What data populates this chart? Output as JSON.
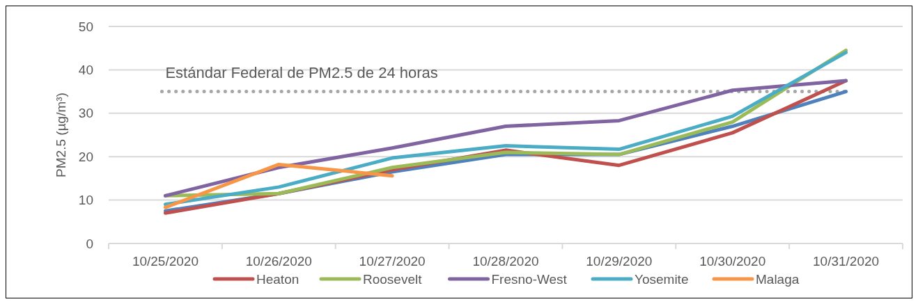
{
  "chart_data": {
    "type": "line",
    "ylabel": "PM2.5 (µg/m³)",
    "categories": [
      "10/25/2020",
      "10/26/2020",
      "10/27/2020",
      "10/28/2020",
      "10/29/2020",
      "10/30/2020",
      "10/31/2020"
    ],
    "series": [
      {
        "color": "#4f81bd",
        "values": [
          7.5,
          11.5,
          16.5,
          20.5,
          20.5,
          27,
          35
        ]
      },
      {
        "name": "Heaton",
        "color": "#c0504d",
        "values": [
          7,
          11.5,
          17,
          21.5,
          18,
          25.5,
          37.5
        ]
      },
      {
        "name": "Roosevelt",
        "color": "#9bbb59",
        "values": [
          11,
          11.5,
          17.5,
          21,
          20.5,
          28,
          44.5
        ]
      },
      {
        "name": "Fresno-West",
        "color": "#8064a2",
        "values": [
          11,
          17.5,
          22,
          27,
          28.3,
          35.3,
          37.5
        ]
      },
      {
        "name": "Yosemite",
        "color": "#4bacc6",
        "values": [
          9,
          13,
          19.7,
          22.5,
          21.7,
          29.3,
          44
        ]
      },
      {
        "name": "Malaga",
        "color": "#f79646",
        "values": [
          8.3,
          18.2,
          15.6,
          null,
          null,
          null,
          null
        ]
      }
    ],
    "ylim": [
      0,
      50
    ],
    "yticks": [
      0,
      10,
      20,
      30,
      40,
      50
    ],
    "grid": "y",
    "legend": "bottom",
    "line_style": "solid",
    "ref_lines": [
      {
        "axis": "y",
        "value": 35,
        "label": "Estándar Federal de PM2.5 de 24 horas",
        "color": "#a6a6a6",
        "line_style": "dotted"
      }
    ]
  }
}
